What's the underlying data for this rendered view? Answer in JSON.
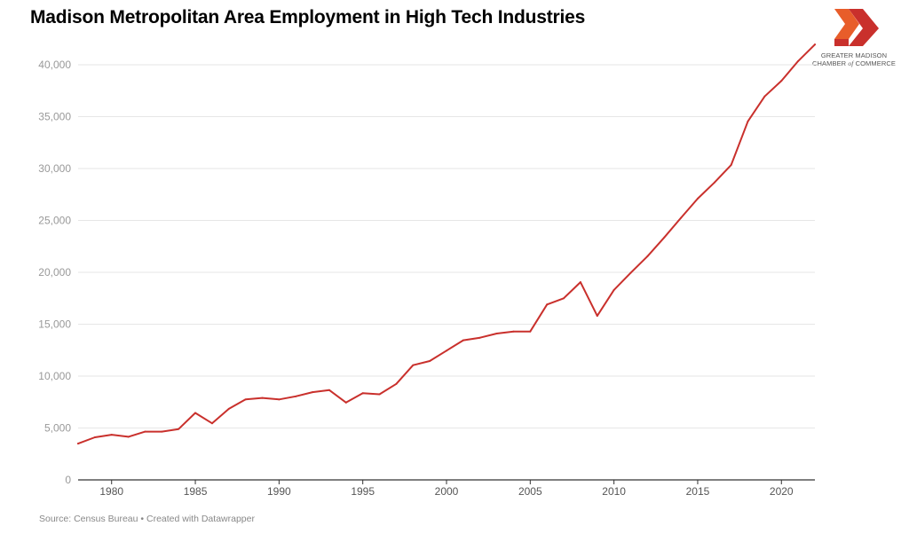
{
  "chart_data": {
    "type": "line",
    "title": "Madison Metropolitan Area Employment in High Tech Industries",
    "xlabel": "",
    "ylabel": "",
    "xlim": [
      1978,
      2022
    ],
    "ylim": [
      0,
      40000
    ],
    "y_ticks": [
      0,
      5000,
      10000,
      15000,
      20000,
      25000,
      30000,
      35000,
      40000
    ],
    "y_tick_labels": [
      "0",
      "5,000",
      "10,000",
      "15,000",
      "20,000",
      "25,000",
      "30,000",
      "35,000",
      "40,000"
    ],
    "x_ticks": [
      1980,
      1985,
      1990,
      1995,
      2000,
      2005,
      2010,
      2015,
      2020
    ],
    "x_tick_labels": [
      "1980",
      "1985",
      "1990",
      "1995",
      "2000",
      "2005",
      "2010",
      "2015",
      "2020"
    ],
    "grid": "horizontal",
    "series": [
      {
        "color": "#c9302c",
        "x": [
          1978,
          1979,
          1980,
          1981,
          1982,
          1983,
          1984,
          1985,
          1986,
          1987,
          1988,
          1989,
          1990,
          1991,
          1992,
          1993,
          1994,
          1995,
          1996,
          1997,
          1998,
          1999,
          2000,
          2001,
          2002,
          2003,
          2004,
          2005,
          2006,
          2007,
          2008,
          2009,
          2010,
          2011,
          2012,
          2013,
          2014,
          2015,
          2016,
          2017,
          2018,
          2019,
          2020,
          2021,
          2022
        ],
        "values": [
          3500,
          4100,
          4350,
          4150,
          4650,
          4650,
          4900,
          6450,
          5450,
          6850,
          7750,
          7900,
          7750,
          8050,
          8450,
          8650,
          7450,
          8350,
          8250,
          9250,
          11050,
          11450,
          12450,
          13450,
          13700,
          14100,
          14300,
          14300,
          16900,
          17500,
          19050,
          15800,
          18300,
          19950,
          21550,
          23350,
          25250,
          27100,
          28650,
          30350,
          34550,
          36950,
          38450,
          40350,
          41950
        ]
      }
    ]
  },
  "logo": {
    "line1": "GREATER MADISON",
    "line2_a": "CHAMBER ",
    "line2_b": "of",
    "line2_c": " COMMERCE"
  },
  "source": "Source: Census Bureau • Created with Datawrapper",
  "colors": {
    "line": "#c9302c",
    "logo_red": "#c9302c",
    "logo_orange": "#e85d2a",
    "grid": "#e6e6e6",
    "axis": "#333333"
  }
}
